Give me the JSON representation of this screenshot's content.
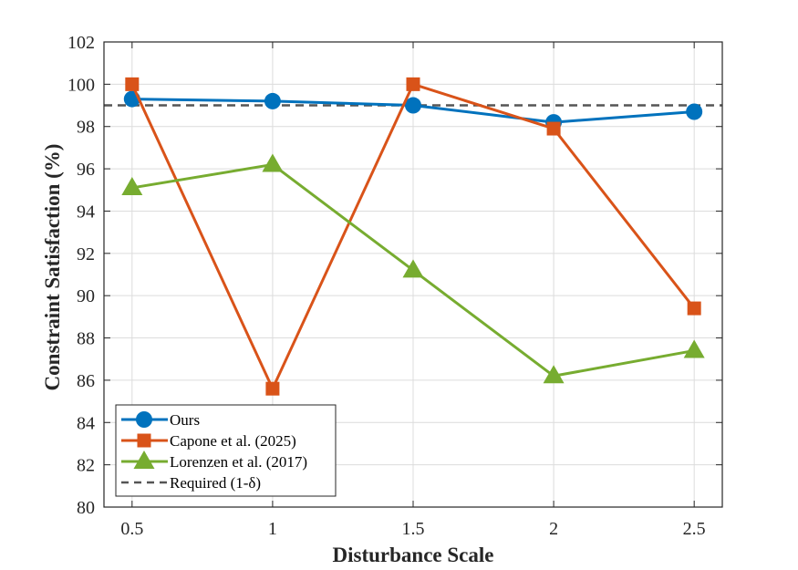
{
  "chart_data": {
    "type": "line",
    "title": "",
    "xlabel": "Disturbance Scale",
    "ylabel": "Constraint Satisfaction (%)",
    "x": [
      0.5,
      1,
      1.5,
      2,
      2.5
    ],
    "xlim": [
      0.4,
      2.6
    ],
    "ylim": [
      80,
      102
    ],
    "xticks": [
      0.5,
      1,
      1.5,
      2,
      2.5
    ],
    "xtick_labels": [
      "0.5",
      "1",
      "1.5",
      "2",
      "2.5"
    ],
    "yticks": [
      80,
      82,
      84,
      86,
      88,
      90,
      92,
      94,
      96,
      98,
      100,
      102
    ],
    "ytick_labels": [
      "80",
      "82",
      "84",
      "86",
      "88",
      "90",
      "92",
      "94",
      "96",
      "98",
      "100",
      "102"
    ],
    "grid": true,
    "legend_position": "bottom-left",
    "series": [
      {
        "name": "Ours",
        "marker": "circle",
        "color": "#0072BD",
        "values": [
          99.3,
          99.2,
          99.0,
          98.2,
          98.7
        ]
      },
      {
        "name": "Capone et al. (2025)",
        "marker": "square",
        "color": "#D95319",
        "values": [
          100.0,
          85.6,
          100.0,
          97.9,
          89.4
        ]
      },
      {
        "name": "Lorenzen et al. (2017)",
        "marker": "triangle",
        "color": "#77AC30",
        "values": [
          95.1,
          96.2,
          91.2,
          86.2,
          87.4
        ]
      }
    ],
    "reference_line": {
      "name": "Required (1-δ)",
      "value": 99.0,
      "style": "dashed",
      "color": "#555555"
    }
  }
}
